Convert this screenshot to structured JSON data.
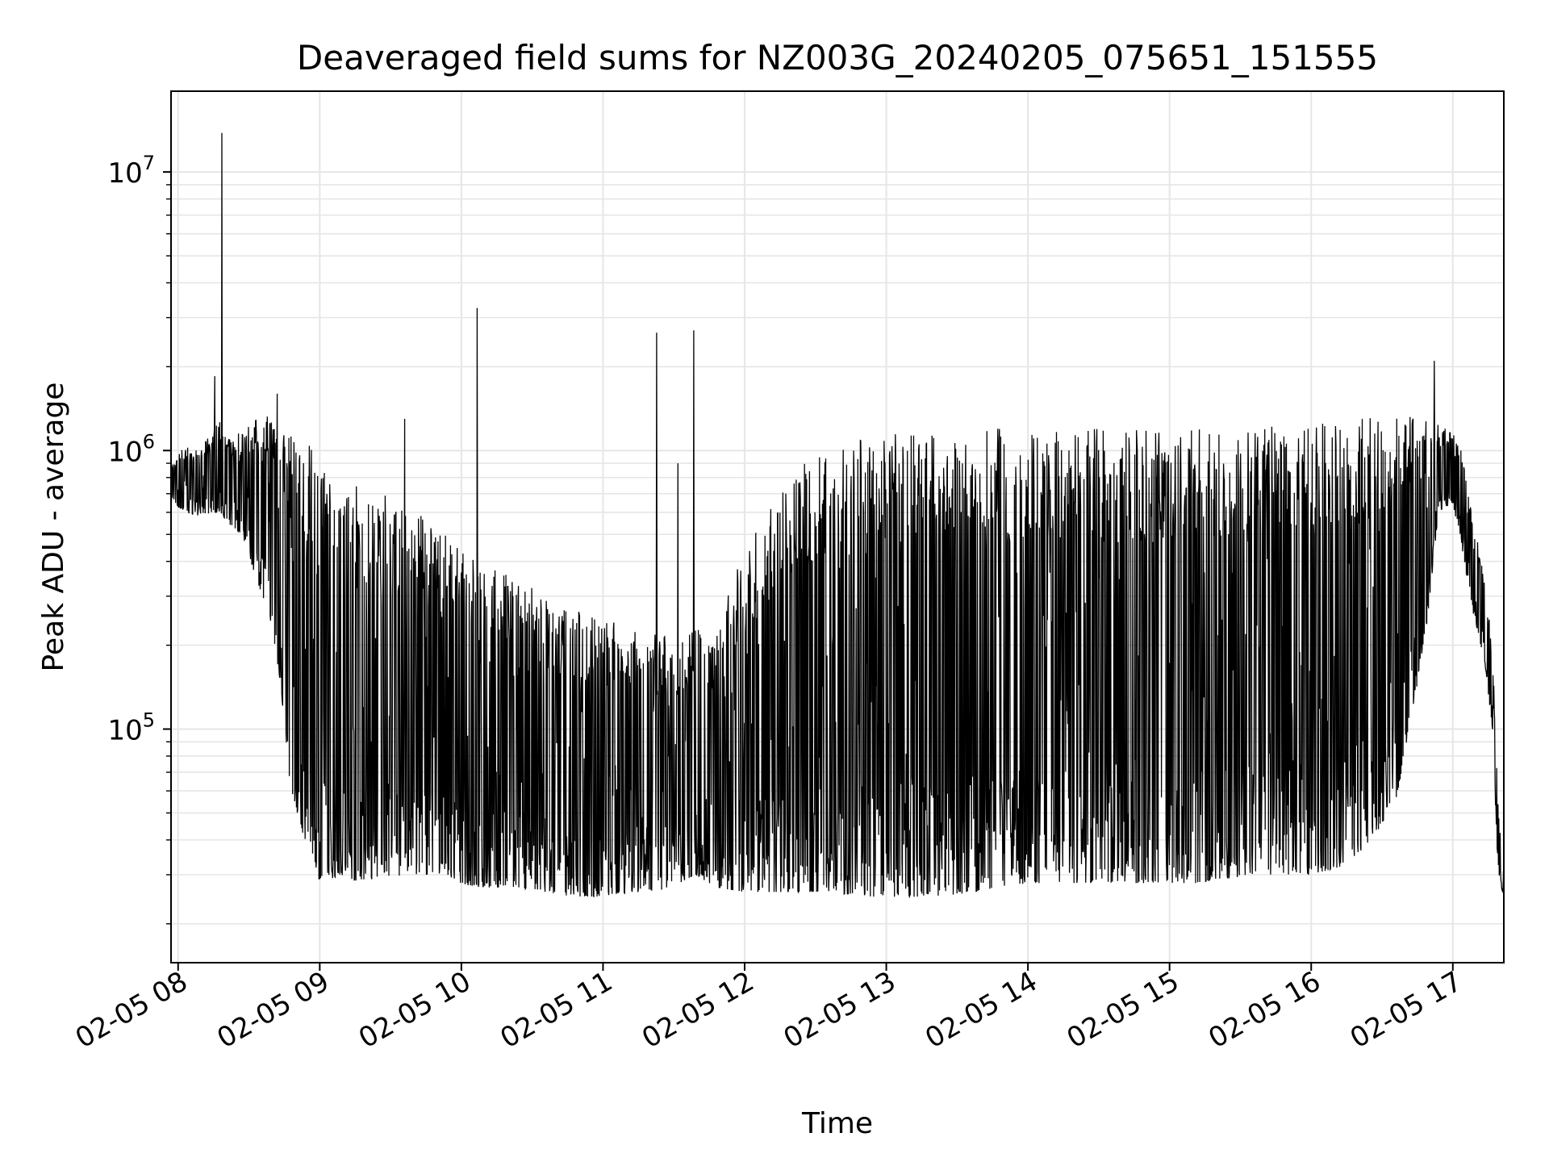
{
  "chart_data": {
    "type": "line",
    "title": "Deaveraged field sums for NZ003G_20240205_075651_151555",
    "xlabel": "Time",
    "ylabel": "Peak ADU - average",
    "yscale": "log",
    "ylim": [
      14500,
      19500000
    ],
    "xlim_hours": [
      7.95,
      17.36
    ],
    "grid": true,
    "legend": "none",
    "line_color": "#000000",
    "x_ticks": [
      {
        "hour": 8,
        "label": "02-05 08"
      },
      {
        "hour": 9,
        "label": "02-05 09"
      },
      {
        "hour": 10,
        "label": "02-05 10"
      },
      {
        "hour": 11,
        "label": "02-05 11"
      },
      {
        "hour": 12,
        "label": "02-05 12"
      },
      {
        "hour": 13,
        "label": "02-05 13"
      },
      {
        "hour": 14,
        "label": "02-05 14"
      },
      {
        "hour": 15,
        "label": "02-05 15"
      },
      {
        "hour": 16,
        "label": "02-05 16"
      },
      {
        "hour": 17,
        "label": "02-05 17"
      }
    ],
    "y_ticks": [
      {
        "value": 100000,
        "base": "10",
        "exp": "5"
      },
      {
        "value": 1000000,
        "base": "10",
        "exp": "6"
      },
      {
        "value": 10000000,
        "base": "10",
        "exp": "7"
      }
    ],
    "series": [
      {
        "hours": [
          7.95,
          8.05,
          8.15,
          8.25,
          8.3,
          8.35,
          8.45,
          8.55,
          8.65,
          8.72,
          8.78,
          8.85,
          8.9,
          8.95,
          9.0,
          9.15,
          9.3,
          9.45,
          9.6,
          9.8,
          10.0,
          10.1,
          10.2,
          10.4,
          10.6,
          10.8,
          11.0,
          11.2,
          11.38,
          11.5,
          11.65,
          11.8,
          12.0,
          12.2,
          12.4,
          12.6,
          12.85,
          13.0,
          13.2,
          13.4,
          13.6,
          13.8,
          14.0,
          14.2,
          14.4,
          14.6,
          14.8,
          15.0,
          15.2,
          15.4,
          15.6,
          15.8,
          16.0,
          16.2,
          16.4,
          16.6,
          16.8,
          16.9,
          17.0,
          17.08,
          17.15,
          17.22,
          17.28,
          17.32,
          17.36
        ],
        "lower": [
          650000,
          600000,
          580000,
          600000,
          600000,
          550000,
          500000,
          350000,
          250000,
          150000,
          70000,
          45000,
          40000,
          35000,
          28000,
          30000,
          28000,
          30000,
          29000,
          30000,
          28000,
          27000,
          27000,
          27000,
          26000,
          25000,
          25000,
          26000,
          26000,
          27000,
          30000,
          27000,
          26000,
          26000,
          26000,
          26000,
          25000,
          25000,
          25000,
          25000,
          26000,
          27000,
          28000,
          28000,
          28000,
          28000,
          28000,
          28000,
          28000,
          29000,
          30000,
          30000,
          30000,
          32000,
          38000,
          55000,
          200000,
          600000,
          650000,
          400000,
          250000,
          180000,
          100000,
          30000,
          25000
        ],
        "upper": [
          900000,
          1050000,
          1000000,
          1200000,
          1300000,
          1100000,
          1200000,
          1300000,
          1350000,
          1300000,
          1150000,
          1100000,
          1100000,
          1000000,
          900000,
          800000,
          750000,
          700000,
          650000,
          550000,
          450000,
          420000,
          380000,
          350000,
          300000,
          270000,
          250000,
          230000,
          220000,
          220000,
          230000,
          230000,
          450000,
          650000,
          900000,
          1050000,
          1100000,
          1150000,
          1200000,
          1200000,
          1200000,
          1200000,
          1200000,
          1200000,
          1200000,
          1200000,
          1200000,
          1200000,
          1200000,
          1200000,
          1250000,
          1250000,
          1250000,
          1300000,
          1350000,
          1400000,
          1300000,
          1250000,
          1150000,
          1000000,
          600000,
          350000,
          200000,
          60000,
          30000
        ],
        "spikes": [
          {
            "hour": 8.31,
            "value": 13800000
          },
          {
            "hour": 8.26,
            "value": 1850000
          },
          {
            "hour": 8.7,
            "value": 1600000
          },
          {
            "hour": 9.6,
            "value": 1300000
          },
          {
            "hour": 10.11,
            "value": 3250000
          },
          {
            "hour": 11.38,
            "value": 2650000
          },
          {
            "hour": 11.64,
            "value": 2700000
          },
          {
            "hour": 11.53,
            "value": 900000
          },
          {
            "hour": 16.87,
            "value": 2100000
          }
        ]
      }
    ]
  }
}
